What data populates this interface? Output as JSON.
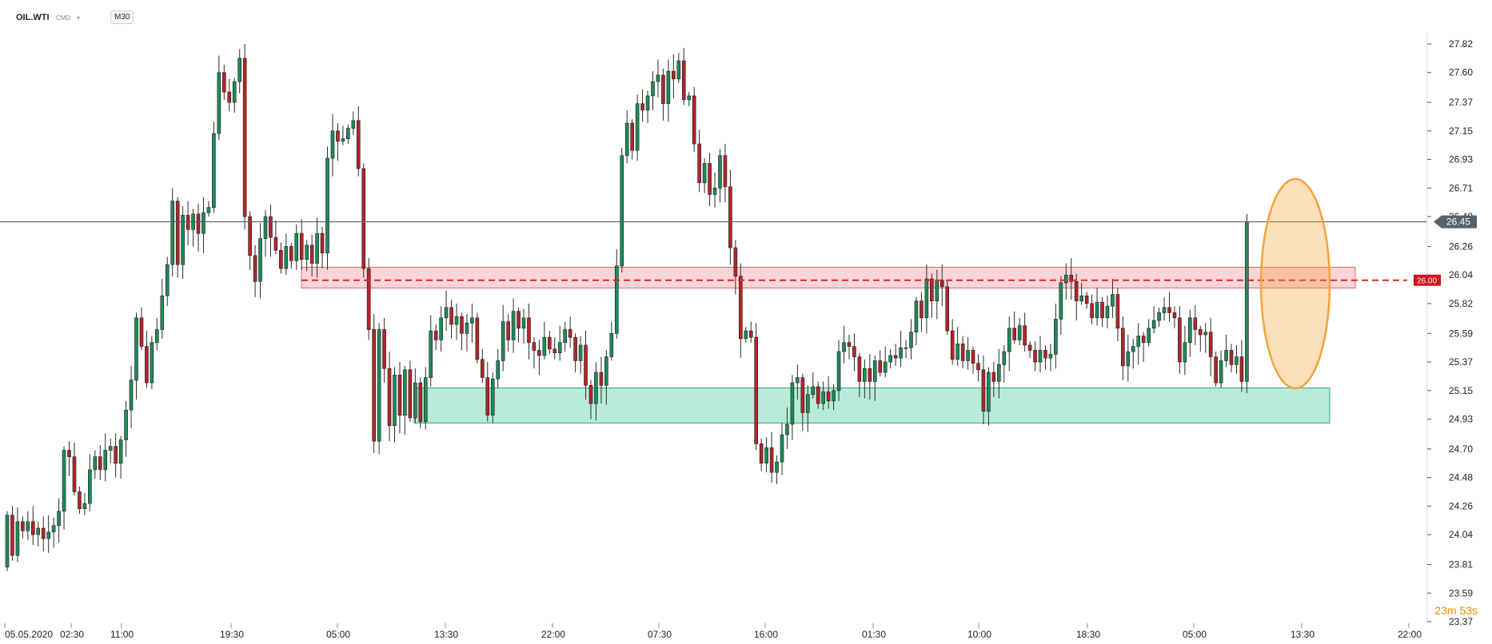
{
  "header": {
    "symbol": "OIL.WTI",
    "source": "CMD",
    "timeframe": "M30"
  },
  "countdown": "23m 53s",
  "colors": {
    "bull": "#1e8a5a",
    "bear": "#b3252a",
    "resistance_zone": "#f6b3b6",
    "support_zone": "#7fdbb8",
    "ellipse": "#f7a23b",
    "price_line": "#55626b",
    "level_line": "#e0262d"
  },
  "chart_data": {
    "type": "candlestick",
    "title": "",
    "ylim": [
      23.37,
      27.82
    ],
    "y_ticks": [
      27.82,
      27.6,
      27.37,
      27.15,
      26.93,
      26.71,
      26.49,
      26.26,
      26.04,
      25.82,
      25.59,
      25.37,
      25.15,
      24.93,
      24.7,
      24.48,
      24.26,
      24.04,
      23.81,
      23.59,
      23.37
    ],
    "x_ticks": [
      "05.05.2020",
      "02:30",
      "11:00",
      "19:30",
      "05:00",
      "13:30",
      "22:00",
      "07:30",
      "16:00",
      "01:30",
      "10:00",
      "18:30",
      "05:00",
      "13:30",
      "22:00"
    ],
    "current_price": 26.45,
    "level_line": 26.0,
    "zones": [
      {
        "name": "resistance",
        "from": 25.94,
        "to": 26.1
      },
      {
        "name": "support",
        "from": 24.9,
        "to": 25.17
      }
    ],
    "candles": [
      [
        23.79,
        24.19
      ],
      [
        24.19,
        23.88
      ],
      [
        23.88,
        24.14
      ],
      [
        24.14,
        24.07
      ],
      [
        24.07,
        24.14
      ],
      [
        24.14,
        24.04
      ],
      [
        24.04,
        24.09
      ],
      [
        24.09,
        24.01
      ],
      [
        24.01,
        24.06
      ],
      [
        24.06,
        24.11
      ],
      [
        24.11,
        24.22
      ],
      [
        24.22,
        24.69
      ],
      [
        24.69,
        24.64
      ],
      [
        24.64,
        24.37
      ],
      [
        24.37,
        24.24
      ],
      [
        24.24,
        24.28
      ],
      [
        24.28,
        24.54
      ],
      [
        24.54,
        24.64
      ],
      [
        24.64,
        24.54
      ],
      [
        24.54,
        24.69
      ],
      [
        24.69,
        24.72
      ],
      [
        24.72,
        24.59
      ],
      [
        24.59,
        24.77
      ],
      [
        24.77,
        25.0
      ],
      [
        25.0,
        25.23
      ],
      [
        25.23,
        25.71
      ],
      [
        25.71,
        25.49
      ],
      [
        25.49,
        25.21
      ],
      [
        25.21,
        25.52
      ],
      [
        25.52,
        25.62
      ],
      [
        25.62,
        25.88
      ],
      [
        25.88,
        26.12
      ],
      [
        26.12,
        26.61
      ],
      [
        26.61,
        26.12
      ],
      [
        26.12,
        26.5
      ],
      [
        26.5,
        26.39
      ],
      [
        26.39,
        26.51
      ],
      [
        26.51,
        26.36
      ],
      [
        26.36,
        26.52
      ],
      [
        26.52,
        26.56
      ],
      [
        26.56,
        27.13
      ],
      [
        27.13,
        27.6
      ],
      [
        27.6,
        27.45
      ],
      [
        27.45,
        27.37
      ],
      [
        27.37,
        27.53
      ],
      [
        27.53,
        27.71
      ],
      [
        27.71,
        26.49
      ],
      [
        26.49,
        26.19
      ],
      [
        26.19,
        25.99
      ],
      [
        25.99,
        26.32
      ],
      [
        26.32,
        26.49
      ],
      [
        26.49,
        26.33
      ],
      [
        26.33,
        26.23
      ],
      [
        26.23,
        26.09
      ],
      [
        26.09,
        26.26
      ],
      [
        26.26,
        26.15
      ],
      [
        26.15,
        26.36
      ],
      [
        26.36,
        26.16
      ],
      [
        26.16,
        26.27
      ],
      [
        26.27,
        26.13
      ],
      [
        26.13,
        26.36
      ],
      [
        26.36,
        26.21
      ],
      [
        26.21,
        26.94
      ],
      [
        26.94,
        27.15
      ],
      [
        27.15,
        27.07
      ],
      [
        27.07,
        27.09
      ],
      [
        27.09,
        27.17
      ],
      [
        27.17,
        27.23
      ],
      [
        27.23,
        26.86
      ],
      [
        26.86,
        26.09
      ],
      [
        26.09,
        25.62
      ],
      [
        25.62,
        24.76
      ],
      [
        24.76,
        25.62
      ],
      [
        25.62,
        25.32
      ],
      [
        25.32,
        24.88
      ],
      [
        24.88,
        25.27
      ],
      [
        25.27,
        24.96
      ],
      [
        24.96,
        25.31
      ],
      [
        25.31,
        24.94
      ],
      [
        24.94,
        25.21
      ],
      [
        25.21,
        24.91
      ],
      [
        24.91,
        25.25
      ],
      [
        25.25,
        25.61
      ],
      [
        25.61,
        25.54
      ],
      [
        25.54,
        25.71
      ],
      [
        25.71,
        25.79
      ],
      [
        25.79,
        25.66
      ],
      [
        25.66,
        25.72
      ],
      [
        25.72,
        25.59
      ],
      [
        25.59,
        25.67
      ],
      [
        25.67,
        25.71
      ],
      [
        25.71,
        25.39
      ],
      [
        25.39,
        25.25
      ],
      [
        25.25,
        24.96
      ],
      [
        24.96,
        25.24
      ],
      [
        25.24,
        25.38
      ],
      [
        25.38,
        25.68
      ],
      [
        25.68,
        25.54
      ],
      [
        25.54,
        25.76
      ],
      [
        25.76,
        25.63
      ],
      [
        25.63,
        25.71
      ],
      [
        25.71,
        25.52
      ],
      [
        25.52,
        25.46
      ],
      [
        25.46,
        25.42
      ],
      [
        25.42,
        25.56
      ],
      [
        25.56,
        25.47
      ],
      [
        25.47,
        25.44
      ],
      [
        25.44,
        25.52
      ],
      [
        25.52,
        25.62
      ],
      [
        25.62,
        25.56
      ],
      [
        25.56,
        25.38
      ],
      [
        25.38,
        25.5
      ],
      [
        25.5,
        25.19
      ],
      [
        25.19,
        25.05
      ],
      [
        25.05,
        25.29
      ],
      [
        25.29,
        25.19
      ],
      [
        25.19,
        25.41
      ],
      [
        25.41,
        25.59
      ],
      [
        25.59,
        26.11
      ],
      [
        26.11,
        26.96
      ],
      [
        26.96,
        27.21
      ],
      [
        27.21,
        27.0
      ],
      [
        27.0,
        27.36
      ],
      [
        27.36,
        27.31
      ],
      [
        27.31,
        27.42
      ],
      [
        27.42,
        27.53
      ],
      [
        27.53,
        27.58
      ],
      [
        27.58,
        27.36
      ],
      [
        27.36,
        27.61
      ],
      [
        27.61,
        27.55
      ],
      [
        27.55,
        27.69
      ],
      [
        27.69,
        27.39
      ],
      [
        27.39,
        27.42
      ],
      [
        27.42,
        27.05
      ],
      [
        27.05,
        26.75
      ],
      [
        26.75,
        26.9
      ],
      [
        26.9,
        26.66
      ],
      [
        26.66,
        26.71
      ],
      [
        26.71,
        26.96
      ],
      [
        26.96,
        26.72
      ],
      [
        26.72,
        26.25
      ],
      [
        26.25,
        26.03
      ],
      [
        26.03,
        25.55
      ],
      [
        25.55,
        25.61
      ],
      [
        25.61,
        25.56
      ],
      [
        25.56,
        24.74
      ],
      [
        24.74,
        24.59
      ],
      [
        24.59,
        24.71
      ],
      [
        24.71,
        24.52
      ],
      [
        24.52,
        24.6
      ],
      [
        24.6,
        24.81
      ],
      [
        24.81,
        24.89
      ],
      [
        24.89,
        25.21
      ],
      [
        25.21,
        25.25
      ],
      [
        25.25,
        24.98
      ],
      [
        24.98,
        25.12
      ],
      [
        25.12,
        25.18
      ],
      [
        25.18,
        25.05
      ],
      [
        25.05,
        25.14
      ],
      [
        25.14,
        25.07
      ],
      [
        25.07,
        25.15
      ],
      [
        25.15,
        25.45
      ],
      [
        25.45,
        25.52
      ],
      [
        25.52,
        25.49
      ],
      [
        25.49,
        25.41
      ],
      [
        25.41,
        25.22
      ],
      [
        25.22,
        25.32
      ],
      [
        25.32,
        25.22
      ],
      [
        25.22,
        25.38
      ],
      [
        25.38,
        25.29
      ],
      [
        25.29,
        25.37
      ],
      [
        25.37,
        25.42
      ],
      [
        25.42,
        25.4
      ],
      [
        25.4,
        25.48
      ],
      [
        25.48,
        25.48
      ],
      [
        25.48,
        25.6
      ],
      [
        25.6,
        25.84
      ],
      [
        25.84,
        25.71
      ],
      [
        25.71,
        26.01
      ],
      [
        26.01,
        25.84
      ],
      [
        25.84,
        26.0
      ],
      [
        26.0,
        25.95
      ],
      [
        25.95,
        25.61
      ],
      [
        25.61,
        25.39
      ],
      [
        25.39,
        25.51
      ],
      [
        25.51,
        25.38
      ],
      [
        25.38,
        25.46
      ],
      [
        25.46,
        25.36
      ],
      [
        25.36,
        25.31
      ],
      [
        25.31,
        24.99
      ],
      [
        24.99,
        25.29
      ],
      [
        25.29,
        25.22
      ],
      [
        25.22,
        25.35
      ],
      [
        25.35,
        25.45
      ],
      [
        25.45,
        25.63
      ],
      [
        25.63,
        25.54
      ],
      [
        25.54,
        25.65
      ],
      [
        25.65,
        25.5
      ],
      [
        25.5,
        25.46
      ],
      [
        25.46,
        25.37
      ],
      [
        25.37,
        25.46
      ],
      [
        25.46,
        25.4
      ],
      [
        25.4,
        25.43
      ],
      [
        25.43,
        25.7
      ],
      [
        25.7,
        25.98
      ],
      [
        25.98,
        26.04
      ],
      [
        26.04,
        25.99
      ],
      [
        25.99,
        25.84
      ],
      [
        25.84,
        25.88
      ],
      [
        25.88,
        25.82
      ],
      [
        25.82,
        25.71
      ],
      [
        25.71,
        25.83
      ],
      [
        25.83,
        25.71
      ],
      [
        25.71,
        25.8
      ],
      [
        25.8,
        25.89
      ],
      [
        25.89,
        25.63
      ],
      [
        25.63,
        25.34
      ],
      [
        25.34,
        25.45
      ],
      [
        25.45,
        25.49
      ],
      [
        25.49,
        25.57
      ],
      [
        25.57,
        25.52
      ],
      [
        25.52,
        25.63
      ],
      [
        25.63,
        25.69
      ],
      [
        25.69,
        25.75
      ],
      [
        25.75,
        25.79
      ],
      [
        25.79,
        25.75
      ],
      [
        25.75,
        25.71
      ],
      [
        25.71,
        25.37
      ],
      [
        25.37,
        25.52
      ],
      [
        25.52,
        25.71
      ],
      [
        25.71,
        25.62
      ],
      [
        25.62,
        25.58
      ],
      [
        25.58,
        25.6
      ],
      [
        25.6,
        25.41
      ],
      [
        25.41,
        25.21
      ],
      [
        25.21,
        25.38
      ],
      [
        25.38,
        25.46
      ],
      [
        25.46,
        25.35
      ],
      [
        25.35,
        25.41
      ],
      [
        25.41,
        25.22
      ],
      [
        25.22,
        26.45
      ]
    ]
  }
}
